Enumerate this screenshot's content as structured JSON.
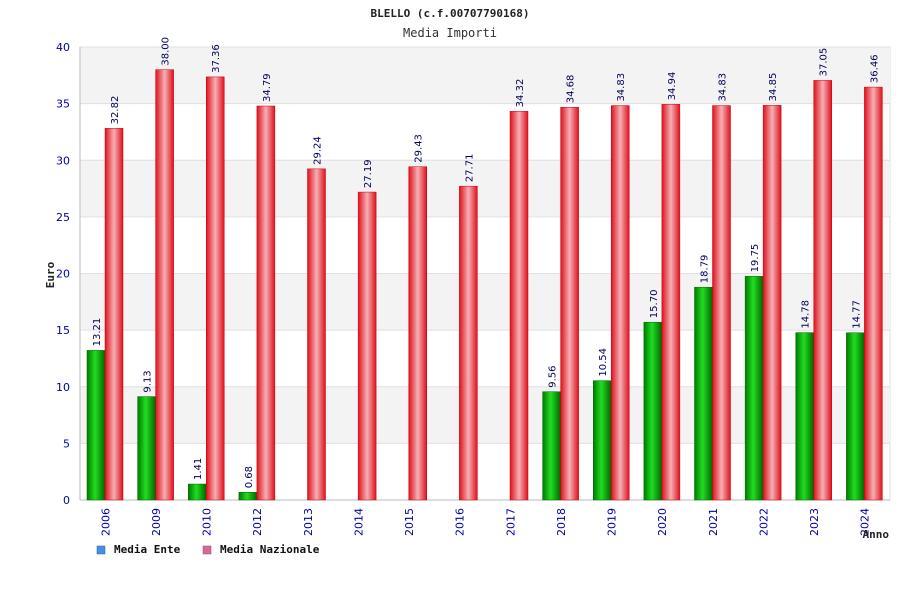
{
  "chart_data": {
    "type": "bar",
    "title": "BLELLO (c.f.00707790168)",
    "subtitle": "Media Importi",
    "xlabel": "Anno",
    "ylabel": "Euro",
    "ylim": [
      0,
      40
    ],
    "yticks": [
      0,
      5,
      10,
      15,
      20,
      25,
      30,
      35,
      40
    ],
    "grid": true,
    "legend_position": "bottom-left",
    "categories": [
      "2006",
      "2009",
      "2010",
      "2012",
      "2013",
      "2014",
      "2015",
      "2016",
      "2017",
      "2018",
      "2019",
      "2020",
      "2021",
      "2022",
      "2023",
      "2024"
    ],
    "series": [
      {
        "name": "Media Ente",
        "color": "#00bb00",
        "legend_color": "#4a90e2",
        "values": [
          13.21,
          9.13,
          1.41,
          0.68,
          null,
          null,
          null,
          null,
          null,
          9.56,
          10.54,
          15.7,
          18.79,
          19.75,
          14.78,
          14.77
        ],
        "labels": [
          "13.21",
          "9.13",
          "1.41",
          "0.68",
          "",
          "",
          "",
          "",
          "",
          "9.56",
          "10.54",
          "15.70",
          "18.79",
          "19.75",
          "14.78",
          "14.77"
        ]
      },
      {
        "name": "Media Nazionale",
        "color": "#ee1122",
        "legend_color": "#d46a9a",
        "values": [
          32.82,
          38.0,
          37.36,
          34.79,
          29.24,
          27.19,
          29.43,
          27.71,
          34.32,
          34.68,
          34.83,
          34.94,
          34.83,
          34.85,
          37.05,
          36.46
        ],
        "labels": [
          "32.82",
          "38.00",
          "37.36",
          "34.79",
          "29.24",
          "27.19",
          "29.43",
          "27.71",
          "34.32",
          "34.68",
          "34.83",
          "34.94",
          "34.83",
          "34.85",
          "37.05",
          "36.46"
        ]
      }
    ]
  }
}
